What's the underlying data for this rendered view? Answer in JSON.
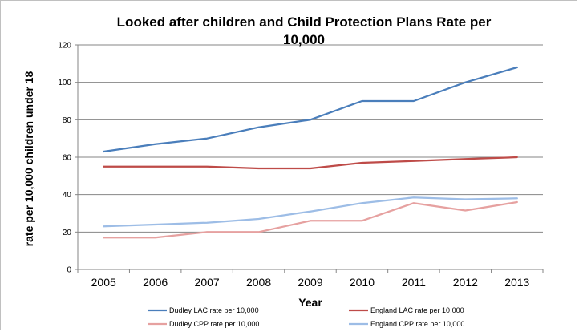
{
  "chart_data": {
    "type": "line",
    "title_line1": "Looked after children and Child Protection Plans Rate per",
    "title_line2": "10,000",
    "xlabel": "Year",
    "ylabel": "rate per 10,000 children under 18",
    "ylim": [
      0,
      120
    ],
    "yticks": [
      0,
      20,
      40,
      60,
      80,
      100,
      120
    ],
    "x": [
      "2005",
      "2006",
      "2007",
      "2008",
      "2009",
      "2010",
      "2011",
      "2012",
      "2013"
    ],
    "grid": true,
    "legend_position": "bottom",
    "series": [
      {
        "name": "Dudley LAC rate per 10,000",
        "color": "#4a7ebb",
        "values": [
          63,
          67,
          70,
          76,
          80,
          90,
          90,
          100,
          108
        ]
      },
      {
        "name": "England LAC rate per 10,000",
        "color": "#be4b48",
        "values": [
          55,
          55,
          55,
          54,
          54,
          57,
          58,
          59,
          60
        ]
      },
      {
        "name": "Dudley CPP rate per 10,000",
        "color": "#e6a1a0",
        "values": [
          17,
          17,
          20,
          20,
          26,
          26,
          35.5,
          31.5,
          36
        ]
      },
      {
        "name": "England CPP rate per 10,000",
        "color": "#9dbde6",
        "values": [
          23,
          24,
          25,
          27,
          31,
          35.5,
          38.5,
          37.5,
          38
        ]
      }
    ]
  }
}
